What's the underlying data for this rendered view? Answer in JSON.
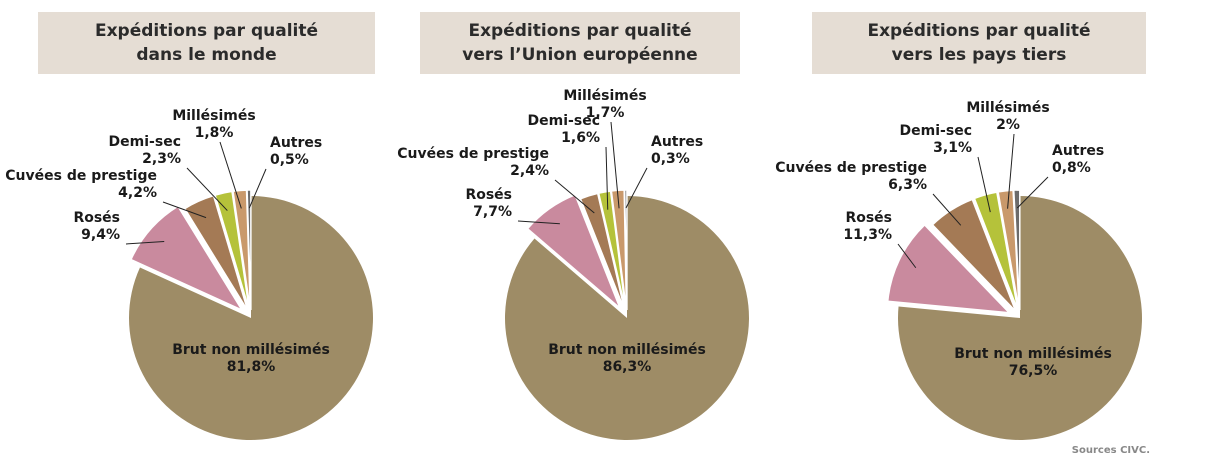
{
  "chart_data": [
    {
      "type": "pie",
      "title": [
        "Expéditions par qualité",
        "dans le monde"
      ],
      "slices": [
        {
          "label": "Brut non millésimés",
          "value": 81.8,
          "display": "81,8%",
          "color": "#9e8c66"
        },
        {
          "label": "Rosés",
          "value": 9.4,
          "display": "9,4%",
          "color": "#c98a9e"
        },
        {
          "label": "Cuvées de prestige",
          "value": 4.2,
          "display": "4,2%",
          "color": "#a47a55"
        },
        {
          "label": "Demi-sec",
          "value": 2.3,
          "display": "2,3%",
          "color": "#b5c23a"
        },
        {
          "label": "Millésimés",
          "value": 1.8,
          "display": "1,8%",
          "color": "#c9996b"
        },
        {
          "label": "Autres",
          "value": 0.5,
          "display": "0,5%",
          "color": "#6b6b6b"
        }
      ]
    },
    {
      "type": "pie",
      "title": [
        "Expéditions par qualité",
        "vers l’Union européenne"
      ],
      "slices": [
        {
          "label": "Brut non millésimés",
          "value": 86.3,
          "display": "86,3%",
          "color": "#9e8c66"
        },
        {
          "label": "Rosés",
          "value": 7.7,
          "display": "7,7%",
          "color": "#c98a9e"
        },
        {
          "label": "Cuvées de prestige",
          "value": 2.4,
          "display": "2,4%",
          "color": "#a47a55"
        },
        {
          "label": "Demi-sec",
          "value": 1.6,
          "display": "1,6%",
          "color": "#b5c23a"
        },
        {
          "label": "Millésimés",
          "value": 1.7,
          "display": "1,7%",
          "color": "#c9996b"
        },
        {
          "label": "Autres",
          "value": 0.3,
          "display": "0,3%",
          "color": "#6b6b6b"
        }
      ]
    },
    {
      "type": "pie",
      "title": [
        "Expéditions par qualité",
        "vers les pays tiers"
      ],
      "slices": [
        {
          "label": "Brut non millésimés",
          "value": 76.5,
          "display": "76,5%",
          "color": "#9e8c66"
        },
        {
          "label": "Rosés",
          "value": 11.3,
          "display": "11,3%",
          "color": "#c98a9e"
        },
        {
          "label": "Cuvées de prestige",
          "value": 6.3,
          "display": "6,3%",
          "color": "#a47a55"
        },
        {
          "label": "Demi-sec",
          "value": 3.1,
          "display": "3,1%",
          "color": "#b5c23a"
        },
        {
          "label": "Millésimés",
          "value": 2,
          "display": "2%",
          "color": "#c9996b"
        },
        {
          "label": "Autres",
          "value": 0.8,
          "display": "0,8%",
          "color": "#6b6b6b"
        }
      ]
    }
  ],
  "source": "Sources CIVC."
}
